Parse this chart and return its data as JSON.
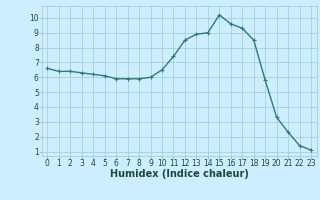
{
  "x": [
    0,
    1,
    2,
    3,
    4,
    5,
    6,
    7,
    8,
    9,
    10,
    11,
    12,
    13,
    14,
    15,
    16,
    17,
    18,
    19,
    20,
    21,
    22,
    23
  ],
  "y": [
    6.6,
    6.4,
    6.4,
    6.3,
    6.2,
    6.1,
    5.9,
    5.9,
    5.9,
    6.0,
    6.5,
    7.4,
    8.5,
    8.9,
    9.0,
    10.2,
    9.6,
    9.3,
    8.5,
    5.8,
    3.3,
    2.3,
    1.4,
    1.1
  ],
  "line_color": "#2e7d6e",
  "marker": "+",
  "marker_size": 3,
  "linewidth": 1.0,
  "xlabel": "Humidex (Indice chaleur)",
  "xlabel_fontsize": 7,
  "xlabel_color": "#1a4a3a",
  "xlim_min": -0.5,
  "xlim_max": 23.5,
  "ylim_min": 0.7,
  "ylim_max": 10.8,
  "yticks": [
    1,
    2,
    3,
    4,
    5,
    6,
    7,
    8,
    9,
    10
  ],
  "xticks": [
    0,
    1,
    2,
    3,
    4,
    5,
    6,
    7,
    8,
    9,
    10,
    11,
    12,
    13,
    14,
    15,
    16,
    17,
    18,
    19,
    20,
    21,
    22,
    23
  ],
  "background_color": "#cceeff",
  "grid_color": "#99cccc",
  "tick_fontsize": 5.5,
  "markeredgewidth": 0.8
}
